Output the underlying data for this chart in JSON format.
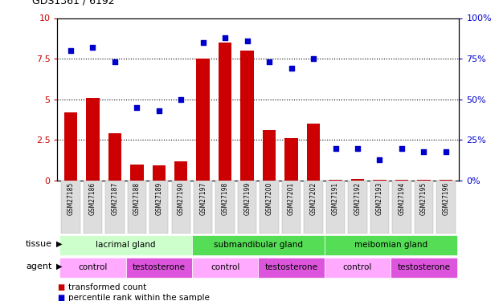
{
  "title": "GDS1361 / 6192",
  "samples": [
    "GSM27185",
    "GSM27186",
    "GSM27187",
    "GSM27188",
    "GSM27189",
    "GSM27190",
    "GSM27197",
    "GSM27198",
    "GSM27199",
    "GSM27200",
    "GSM27201",
    "GSM27202",
    "GSM27191",
    "GSM27192",
    "GSM27193",
    "GSM27194",
    "GSM27195",
    "GSM27196"
  ],
  "bar_values": [
    4.2,
    5.1,
    2.9,
    1.0,
    0.95,
    1.2,
    7.5,
    8.5,
    8.0,
    3.1,
    2.6,
    3.5,
    0.05,
    0.08,
    0.05,
    0.05,
    0.05,
    0.05
  ],
  "dot_values": [
    80,
    82,
    73,
    45,
    43,
    50,
    85,
    88,
    86,
    73,
    69,
    75,
    20,
    20,
    13,
    20,
    18,
    18
  ],
  "bar_color": "#cc0000",
  "dot_color": "#0000cc",
  "ylim_left": [
    0,
    10
  ],
  "ylim_right": [
    0,
    100
  ],
  "yticks_left": [
    0,
    2.5,
    5.0,
    7.5,
    10
  ],
  "yticks_right": [
    0,
    25,
    50,
    75,
    100
  ],
  "ytick_labels_left": [
    "0",
    "2.5",
    "5",
    "7.5",
    "10"
  ],
  "ytick_labels_right": [
    "0%",
    "25%",
    "50%",
    "75%",
    "100%"
  ],
  "hlines": [
    2.5,
    5.0,
    7.5
  ],
  "tissue_groups": [
    {
      "label": "lacrimal gland",
      "start": 0,
      "end": 6,
      "color": "#ccffcc"
    },
    {
      "label": "submandibular gland",
      "start": 6,
      "end": 12,
      "color": "#55dd55"
    },
    {
      "label": "meibomian gland",
      "start": 12,
      "end": 18,
      "color": "#55dd55"
    }
  ],
  "agent_groups": [
    {
      "label": "control",
      "start": 0,
      "end": 3,
      "color": "#ffaaff"
    },
    {
      "label": "testosterone",
      "start": 3,
      "end": 6,
      "color": "#dd55dd"
    },
    {
      "label": "control",
      "start": 6,
      "end": 9,
      "color": "#ffaaff"
    },
    {
      "label": "testosterone",
      "start": 9,
      "end": 12,
      "color": "#dd55dd"
    },
    {
      "label": "control",
      "start": 12,
      "end": 15,
      "color": "#ffaaff"
    },
    {
      "label": "testosterone",
      "start": 15,
      "end": 18,
      "color": "#dd55dd"
    }
  ],
  "legend_bar_label": "transformed count",
  "legend_dot_label": "percentile rank within the sample",
  "tissue_label": "tissue",
  "agent_label": "agent",
  "bg_color": "#ffffff",
  "xtick_bg": "#dddddd"
}
